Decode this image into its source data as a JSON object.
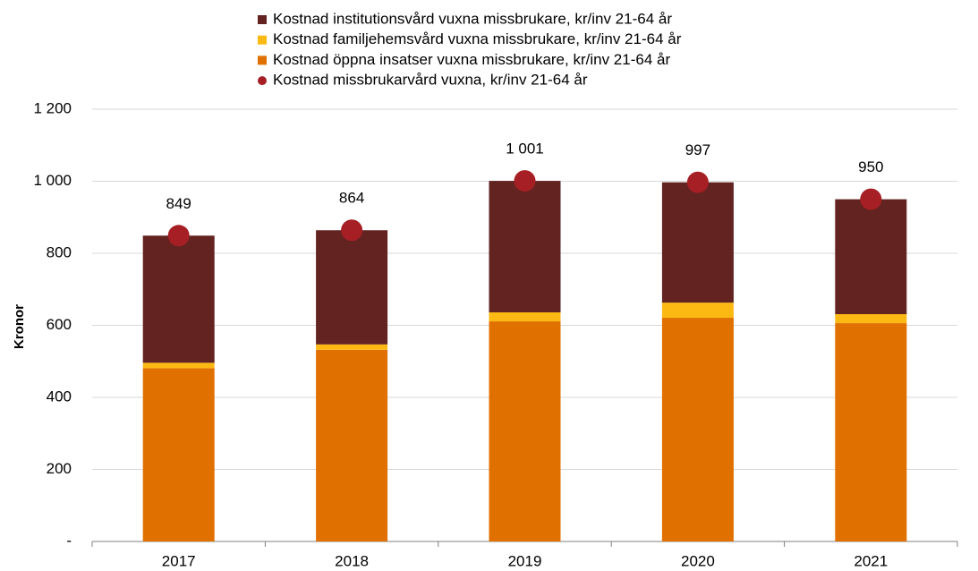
{
  "chart_data": {
    "type": "bar",
    "stacked": true,
    "y_label": "Kronor",
    "categories": [
      "2017",
      "2018",
      "2019",
      "2020",
      "2021"
    ],
    "ylim": [
      0,
      1200
    ],
    "yticks": [
      {
        "value": 0,
        "label": "-"
      },
      200,
      400,
      600,
      800,
      {
        "value": 1000,
        "label": "1 000"
      },
      {
        "value": 1200,
        "label": "1 200"
      }
    ],
    "grid": true,
    "legend": "top",
    "series": [
      {
        "name": "Kostnad institutionsvård vuxna missbrukare, kr/inv 21-64 år",
        "kind": "bar",
        "color": "#622321",
        "values": [
          353,
          317,
          365,
          334,
          319
        ]
      },
      {
        "name": "Kostnad familjehemsvård vuxna missbrukare, kr/inv 21-64 år",
        "kind": "bar",
        "color": "#fdb913",
        "values": [
          15,
          15,
          25,
          42,
          25
        ]
      },
      {
        "name": "Kostnad öppna insatser vuxna missbrukare, kr/inv 21-64 år",
        "kind": "bar",
        "color": "#e07000",
        "values": [
          481,
          532,
          611,
          621,
          606
        ]
      },
      {
        "name": "Kostnad missbrukarvård vuxna, kr/inv 21-64 år",
        "kind": "dot",
        "color": "#a51f24",
        "values": [
          849,
          864,
          1001,
          997,
          950
        ],
        "value_labels": [
          "849",
          "864",
          "1 001",
          "997",
          "950"
        ]
      }
    ]
  }
}
